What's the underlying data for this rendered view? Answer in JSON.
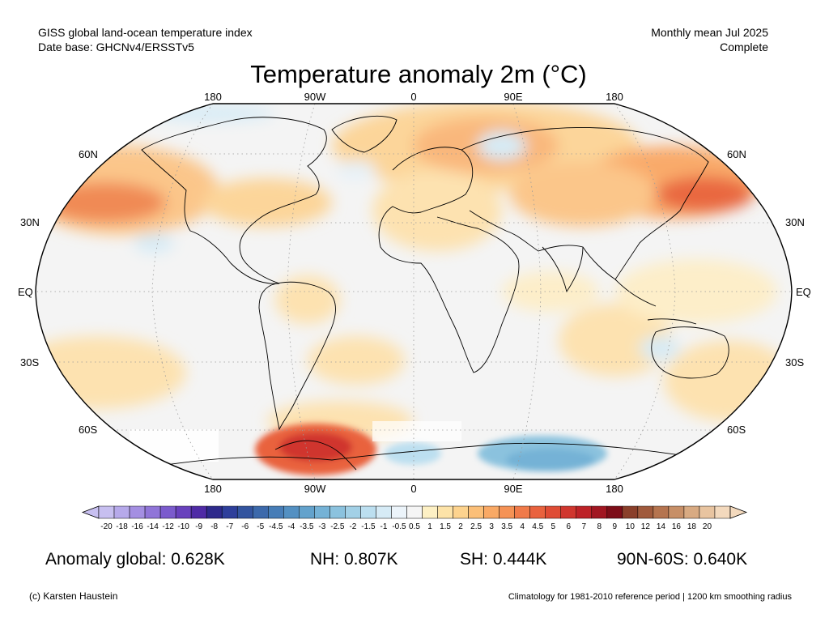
{
  "header": {
    "left_line1": "GISS global land-ocean temperature index",
    "left_line2": "Date base: GHCNv4/ERSSTv5",
    "right_line1": "Monthly mean Jul 2025",
    "right_line2": "Complete"
  },
  "title": "Temperature anomaly 2m (°C)",
  "map": {
    "projection": "Robinson",
    "lon_labels": [
      "180",
      "90W",
      "0",
      "90E",
      "180"
    ],
    "lat_labels_left": [
      "60N",
      "30N",
      "EQ",
      "30S",
      "60S"
    ],
    "lat_labels_right": [
      "60N",
      "30N",
      "EQ",
      "30S",
      "60S"
    ]
  },
  "colorbar": {
    "labels": [
      "-20",
      "-18",
      "-16",
      "-14",
      "-12",
      "-10",
      "-9",
      "-8",
      "-7",
      "-6",
      "-5",
      "-4.5",
      "-4",
      "-3.5",
      "-3",
      "-2.5",
      "-2",
      "-1.5",
      "-1",
      "-0.5",
      "0.5",
      "1",
      "1.5",
      "2",
      "2.5",
      "3",
      "3.5",
      "4",
      "4.5",
      "5",
      "6",
      "7",
      "8",
      "9",
      "10",
      "12",
      "14",
      "16",
      "18",
      "20"
    ],
    "colors": [
      "#c7bff0",
      "#b6a9ea",
      "#a48fe2",
      "#9075d8",
      "#7b5bcd",
      "#6841bd",
      "#4f2ba6",
      "#2e2a8c",
      "#2e3f9b",
      "#33549f",
      "#3c69ab",
      "#477db7",
      "#5390c2",
      "#63a2cc",
      "#75b2d6",
      "#8bc2de",
      "#a2d0e6",
      "#bcdff0",
      "#d6ebf6",
      "#ecf4fa",
      "#f5f5f5",
      "#fdf0c4",
      "#fde3a8",
      "#fdd38e",
      "#fbbf78",
      "#f9a965",
      "#f59255",
      "#f07a49",
      "#e9623e",
      "#df4c35",
      "#d0362e",
      "#bd2227",
      "#a11621",
      "#7d0d18",
      "#8a3f2a",
      "#a05a3c",
      "#b5744f",
      "#c78f67",
      "#d8aa82",
      "#e8c4a0",
      "#f3d9bd"
    ]
  },
  "stats": {
    "global": "Anomaly global: 0.628K",
    "nh": "NH: 0.807K",
    "sh": "SH: 0.444K",
    "arctic": "90N-60S: 0.640K"
  },
  "footer": {
    "left": "(c) Karsten Haustein",
    "right": "Climatology for 1981-2010 reference period | 1200 km smoothing radius"
  }
}
